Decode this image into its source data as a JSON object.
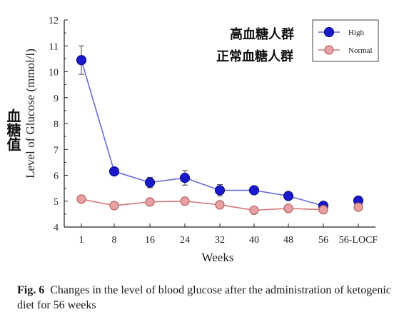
{
  "chart_data": {
    "type": "line",
    "xlabel": "Weeks",
    "ylabel": "Level of Glucose (mmol/l)",
    "categories": [
      "1",
      "8",
      "16",
      "24",
      "32",
      "40",
      "48",
      "56",
      "56-LOCF"
    ],
    "ylim": [
      4,
      12
    ],
    "yticks": [
      4,
      5,
      6,
      7,
      8,
      9,
      10,
      11,
      12
    ],
    "legend_position": "top-right",
    "series": [
      {
        "name": "High",
        "color": "#1a1acc",
        "line_color": "#6a6ad6",
        "values": [
          10.45,
          6.15,
          5.72,
          5.9,
          5.42,
          5.42,
          5.2,
          4.82,
          5.02
        ],
        "errors": [
          0.55,
          0.1,
          0.2,
          0.28,
          0.22,
          0.12,
          0.1,
          0.1,
          0.1
        ],
        "connect_last": false
      },
      {
        "name": "Normal",
        "color": "#e8a0a0",
        "line_color": "#d77878",
        "values": [
          5.08,
          4.83,
          4.97,
          5.0,
          4.86,
          4.65,
          4.72,
          4.67,
          4.77
        ],
        "errors": [
          0.05,
          0.05,
          0.05,
          0.05,
          0.05,
          0.05,
          0.05,
          0.05,
          0.05
        ],
        "connect_last": false
      }
    ]
  },
  "labels": {
    "high_cn": "高血糖人群",
    "normal_cn": "正常血糖人群",
    "side_cn": "血糖值"
  },
  "caption": {
    "prefix": "Fig. 6",
    "text": "Changes in the level of blood glucose after the administration of ketogenic diet for 56 weeks"
  }
}
